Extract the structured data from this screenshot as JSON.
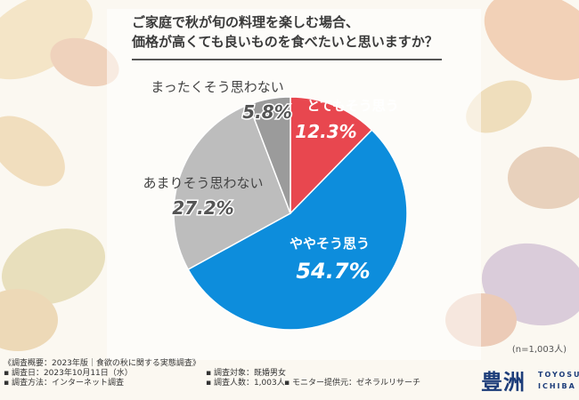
{
  "question": {
    "line1": "ご家庭で秋が旬の料理を楽しむ場合、",
    "line2": "価格が高くても良いものを食べたいと思いますか？"
  },
  "chart_data": {
    "type": "pie",
    "title": "ご家庭で秋が旬の料理を楽しむ場合、価格が高くても良いものを食べたいと思いますか？",
    "slices": [
      {
        "label": "とてもそう思う",
        "value": 12.3,
        "display": "12.3%",
        "color": "#e8474f"
      },
      {
        "label": "ややそう思う",
        "value": 54.7,
        "display": "54.7%",
        "color": "#0d8ddc"
      },
      {
        "label": "あまりそう思わない",
        "value": 27.2,
        "display": "27.2%",
        "color": "#bdbdbd"
      },
      {
        "label": "まったくそう思わない",
        "value": 5.8,
        "display": "5.8%",
        "color": "#9b9b9b"
      }
    ]
  },
  "sample_note": "(n=1,003人)",
  "footer": {
    "line1": "《調査概要：2023年版｜食欲の秋に関する実態調査》",
    "date": "▪ 調査日：2023年10月11日（水）",
    "method": "▪ 調査方法：インターネット調査",
    "target": "▪ 調査対象：既婚男女",
    "count": "▪ 調査人数：1,003人",
    "provider": "▪ モニター提供元：ゼネラルリサーチ"
  },
  "logo": {
    "kanji": "豊洲",
    "en_top": "TOYOSU",
    "en_bottom": "ICHIBA"
  }
}
